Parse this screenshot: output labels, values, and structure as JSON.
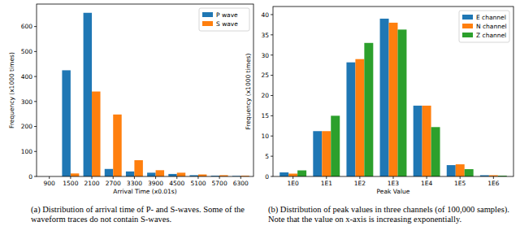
{
  "chart_data": [
    {
      "type": "bar",
      "x_label": "Arrival Time (x0.01s)",
      "y_label": "Frequency (x1000 times)",
      "caption": "(a) Distribution of arrival time of P- and S-waves. Some of the waveform traces do not contain S-waves.",
      "categories": [
        "900",
        "1500",
        "2100",
        "2700",
        "3300",
        "3900",
        "4500",
        "5100",
        "5700",
        "6300"
      ],
      "series": [
        {
          "name": "P wave",
          "color": "#1f77b4",
          "values": [
            0,
            425,
            655,
            30,
            20,
            15,
            10,
            5,
            3,
            2
          ]
        },
        {
          "name": "S wave",
          "color": "#ff7f0e",
          "values": [
            0,
            12,
            340,
            248,
            65,
            25,
            15,
            8,
            5,
            3
          ]
        }
      ],
      "ylim": [
        0,
        690
      ],
      "yticks": [
        0,
        100,
        200,
        300,
        400,
        500,
        600
      ],
      "grid": false,
      "legend": "upper-right"
    },
    {
      "type": "bar",
      "x_label": "Peak Value",
      "y_label": "Frequency (x1000 times)",
      "caption": "(b) Distribution of peak values in three channels (of 100,000 samples). Note that the value on x-axis is increasing exponentially.",
      "categories": [
        "1E0",
        "1E1",
        "1E2",
        "1E3",
        "1E4",
        "1E5",
        "1E6"
      ],
      "series": [
        {
          "name": "E channel",
          "color": "#1f77b4",
          "values": [
            1,
            11.2,
            28.2,
            39,
            17.5,
            2.8,
            0.3
          ]
        },
        {
          "name": "N channel",
          "color": "#ff7f0e",
          "values": [
            0.7,
            11.2,
            29,
            38,
            17.5,
            3,
            0.3
          ]
        },
        {
          "name": "Z channel",
          "color": "#2ca02c",
          "values": [
            1.5,
            15,
            33,
            36.3,
            12.2,
            1.8,
            0.2
          ]
        }
      ],
      "ylim": [
        0,
        42
      ],
      "yticks": [
        0,
        5,
        10,
        15,
        20,
        25,
        30,
        35,
        40
      ],
      "grid": false,
      "legend": "upper-right"
    }
  ]
}
